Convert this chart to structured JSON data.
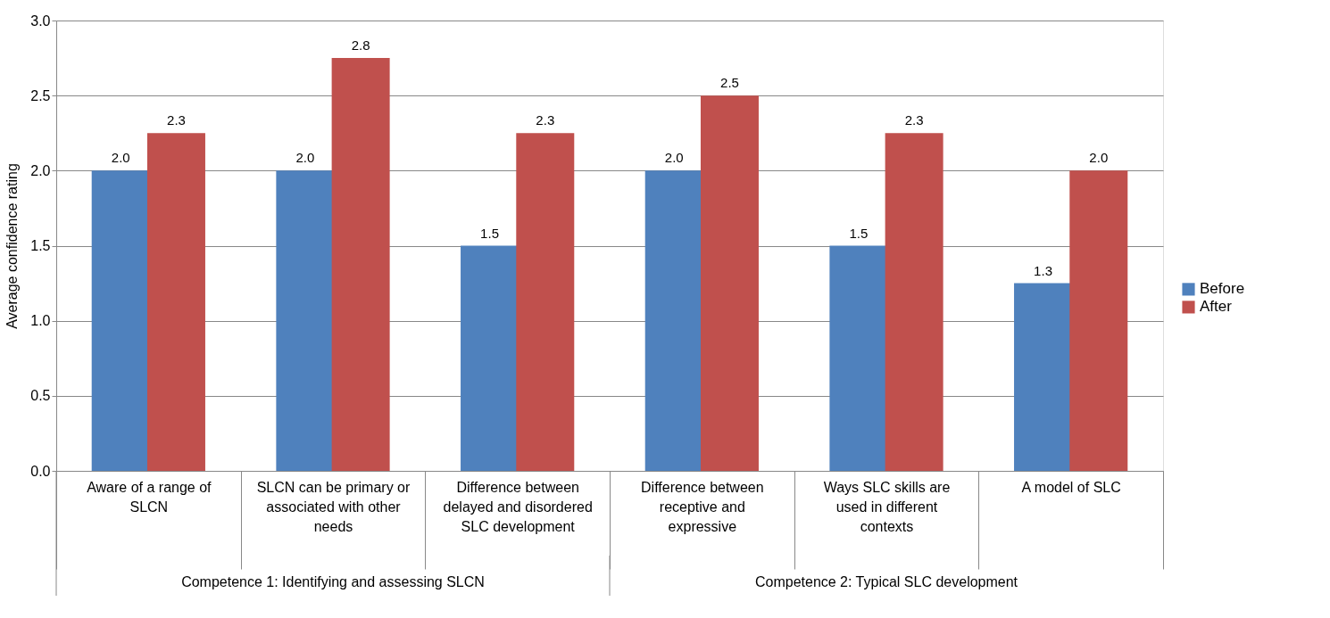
{
  "chart_data": {
    "type": "bar",
    "ylabel": "Average confidence rating",
    "categories": [
      "Aware of a range of SLCN",
      "SLCN can be primary or associated with other needs",
      "Difference between delayed and disordered SLC development",
      "Difference between receptive and expressive",
      "Ways SLC skills are used in different contexts",
      "A model of SLC"
    ],
    "series": [
      {
        "name": "Before",
        "color": "#4f81bd",
        "values": [
          2.0,
          2.0,
          1.5,
          2.0,
          1.5,
          1.25
        ],
        "value_labels": [
          "2.0",
          "2.0",
          "1.5",
          "2.0",
          "1.5",
          "1.3"
        ]
      },
      {
        "name": "After",
        "color": "#c0504d",
        "values": [
          2.25,
          2.75,
          2.25,
          2.5,
          2.25,
          2.0
        ],
        "value_labels": [
          "2.3",
          "2.8",
          "2.3",
          "2.5",
          "2.3",
          "2.0"
        ]
      }
    ],
    "annotations": [
      "Competence 1: Identifying and assessing SLCN",
      "Competence 2: Typical SLC development"
    ],
    "ylim": [
      0,
      3
    ],
    "yticks": [
      {
        "value": 0,
        "label": "0.0"
      },
      0.5,
      {
        "value": 1,
        "label": "1.0"
      },
      1.5,
      {
        "value": 2,
        "label": "2.0"
      },
      2.5,
      {
        "value": 3,
        "label": "3.0"
      }
    ],
    "grid": "y",
    "legend": "right"
  }
}
